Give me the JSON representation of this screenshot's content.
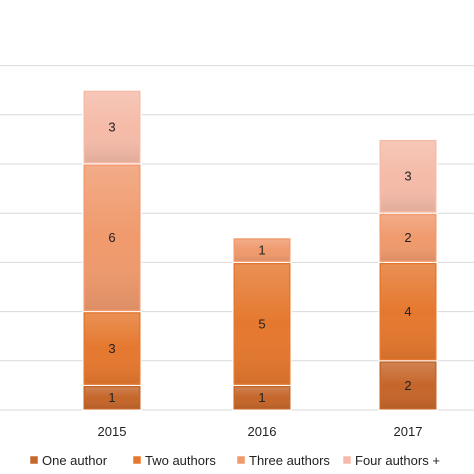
{
  "chart_data": {
    "type": "bar",
    "stacked": true,
    "categories": [
      "2015",
      "2016",
      "2017"
    ],
    "series": [
      {
        "name": "One author",
        "values": [
          1,
          1,
          2
        ],
        "color": "#c5662a"
      },
      {
        "name": "Two authors",
        "values": [
          3,
          5,
          4
        ],
        "color": "#e5782f"
      },
      {
        "name": "Three authors",
        "values": [
          6,
          1,
          2
        ],
        "color": "#f09a6d"
      },
      {
        "name": "Four authors +",
        "values": [
          3,
          0,
          3
        ],
        "color": "#f5bba8"
      }
    ],
    "ylim": [
      0,
      14
    ],
    "y_gridline_step": 2,
    "grid": true,
    "legend_position": "bottom",
    "title": "",
    "xlabel": "",
    "ylabel": ""
  }
}
